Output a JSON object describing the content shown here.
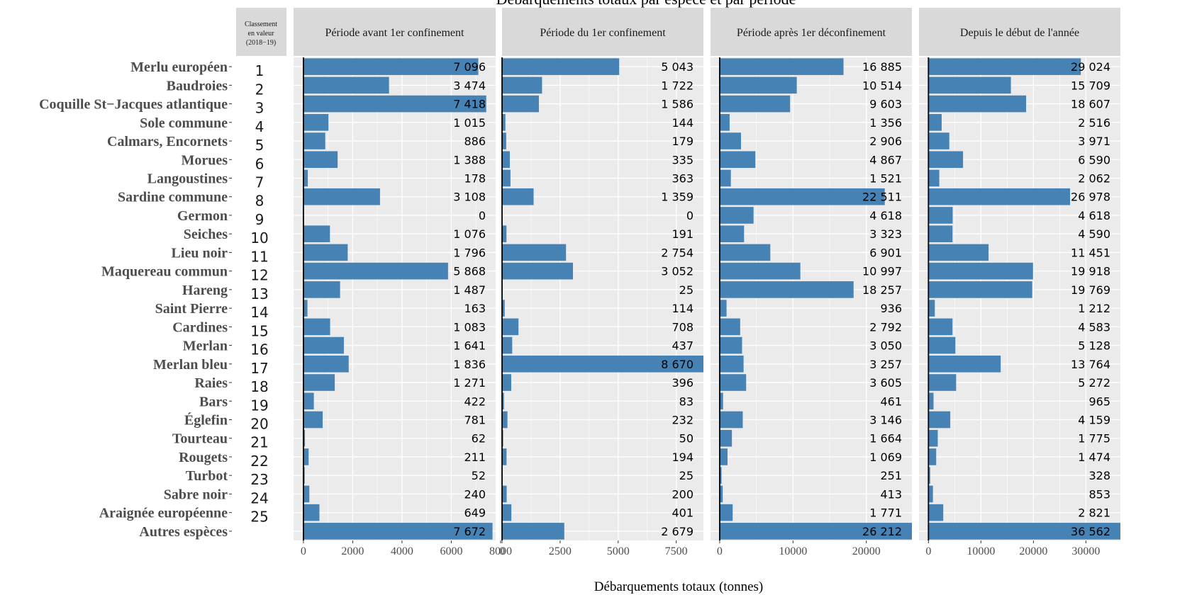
{
  "colors": {
    "bar": "#4682B4",
    "panel": "#EBEBEB",
    "strip": "#D9D9D9",
    "grid": "#FFFFFF"
  },
  "chart_data": {
    "type": "bar",
    "orientation": "horizontal",
    "title": "Débarquements totaux par espèce et par période",
    "xlabel": "Débarquements totaux (tonnes)",
    "rank_header": [
      "Classement",
      "en valeur",
      "(2018−19)"
    ],
    "categories": [
      "Merlu européen",
      "Baudroies",
      "Coquille St−Jacques atlantique",
      "Sole commune",
      "Calmars, Encornets",
      "Morues",
      "Langoustines",
      "Sardine commune",
      "Germon",
      "Seiches",
      "Lieu noir",
      "Maquereau commun",
      "Hareng",
      "Saint Pierre",
      "Cardines",
      "Merlan",
      "Merlan bleu",
      "Raies",
      "Bars",
      "Églefin",
      "Tourteau",
      "Rougets",
      "Turbot",
      "Sabre noir",
      "Araignée européenne",
      "Autres espèces"
    ],
    "ranks": [
      "1",
      "2",
      "3",
      "4",
      "5",
      "6",
      "7",
      "8",
      "9",
      "10",
      "11",
      "12",
      "13",
      "14",
      "15",
      "16",
      "17",
      "18",
      "19",
      "20",
      "21",
      "22",
      "23",
      "24",
      "25",
      ""
    ],
    "panels": [
      {
        "name": "Période avant 1er confinement",
        "xlim": [
          -400,
          7800
        ],
        "ticks": [
          0,
          2000,
          4000,
          6000,
          8000
        ],
        "tick_labels": [
          "0",
          "2000",
          "4000",
          "6000",
          "8000"
        ],
        "values": [
          7096,
          3474,
          7418,
          1015,
          886,
          1388,
          178,
          3108,
          0,
          1076,
          1796,
          5868,
          1487,
          163,
          1083,
          1641,
          1836,
          1271,
          422,
          781,
          62,
          211,
          52,
          240,
          649,
          7672
        ],
        "labels": [
          "7 096",
          "3 474",
          "7 418",
          "1 015",
          "886",
          "1 388",
          "178",
          "3 108",
          "0",
          "1 076",
          "1 796",
          "5 868",
          "1 487",
          "163",
          "1 083",
          "1 641",
          "1 836",
          "1 271",
          "422",
          "781",
          "62",
          "211",
          "52",
          "240",
          "649",
          "7 672"
        ]
      },
      {
        "name": "Période du 1er confinement",
        "xlim": [
          0,
          8670
        ],
        "ticks": [
          0,
          2500,
          5000,
          7500
        ],
        "tick_labels": [
          "0",
          "2500",
          "5000",
          "7500"
        ],
        "values": [
          5043,
          1722,
          1586,
          144,
          179,
          335,
          363,
          1359,
          0,
          191,
          2754,
          3052,
          25,
          114,
          708,
          437,
          8670,
          396,
          83,
          232,
          50,
          194,
          25,
          200,
          401,
          2679
        ],
        "labels": [
          "5 043",
          "1 722",
          "1 586",
          "144",
          "179",
          "335",
          "363",
          "1 359",
          "0",
          "191",
          "2 754",
          "3 052",
          "25",
          "114",
          "708",
          "437",
          "8 670",
          "396",
          "83",
          "232",
          "50",
          "194",
          "25",
          "200",
          "401",
          "2 679"
        ]
      },
      {
        "name": "Période après 1er déconfinement",
        "xlim": [
          -1250,
          26212
        ],
        "ticks": [
          0,
          10000,
          20000
        ],
        "tick_labels": [
          "0",
          "10000",
          "20000"
        ],
        "values": [
          16885,
          10514,
          9603,
          1356,
          2906,
          4867,
          1521,
          22511,
          4618,
          3323,
          6901,
          10997,
          18257,
          936,
          2792,
          3050,
          3257,
          3605,
          461,
          3146,
          1664,
          1069,
          251,
          413,
          1771,
          26212
        ],
        "labels": [
          "16 885",
          "10 514",
          "9 603",
          "1 356",
          "2 906",
          "4 867",
          "1 521",
          "22 511",
          "4 618",
          "3 323",
          "6 901",
          "10 997",
          "18 257",
          "936",
          "2 792",
          "3 050",
          "3 257",
          "3 605",
          "461",
          "3 146",
          "1 664",
          "1 069",
          "251",
          "413",
          "1 771",
          "26 212"
        ]
      },
      {
        "name": "Depuis le début de l'année",
        "xlim": [
          -1800,
          36562
        ],
        "ticks": [
          0,
          10000,
          20000,
          30000
        ],
        "tick_labels": [
          "0",
          "10000",
          "20000",
          "30000"
        ],
        "values": [
          29024,
          15709,
          18607,
          2516,
          3971,
          6590,
          2062,
          26978,
          4618,
          4590,
          11451,
          19918,
          19769,
          1212,
          4583,
          5128,
          13764,
          5272,
          965,
          4159,
          1775,
          1474,
          328,
          853,
          2821,
          36562
        ],
        "labels": [
          "29 024",
          "15 709",
          "18 607",
          "2 516",
          "3 971",
          "6 590",
          "2 062",
          "26 978",
          "4 618",
          "4 590",
          "11 451",
          "19 918",
          "19 769",
          "1 212",
          "4 583",
          "5 128",
          "13 764",
          "5 272",
          "965",
          "4 159",
          "1 775",
          "1 474",
          "328",
          "853",
          "2 821",
          "36 562"
        ]
      }
    ]
  }
}
